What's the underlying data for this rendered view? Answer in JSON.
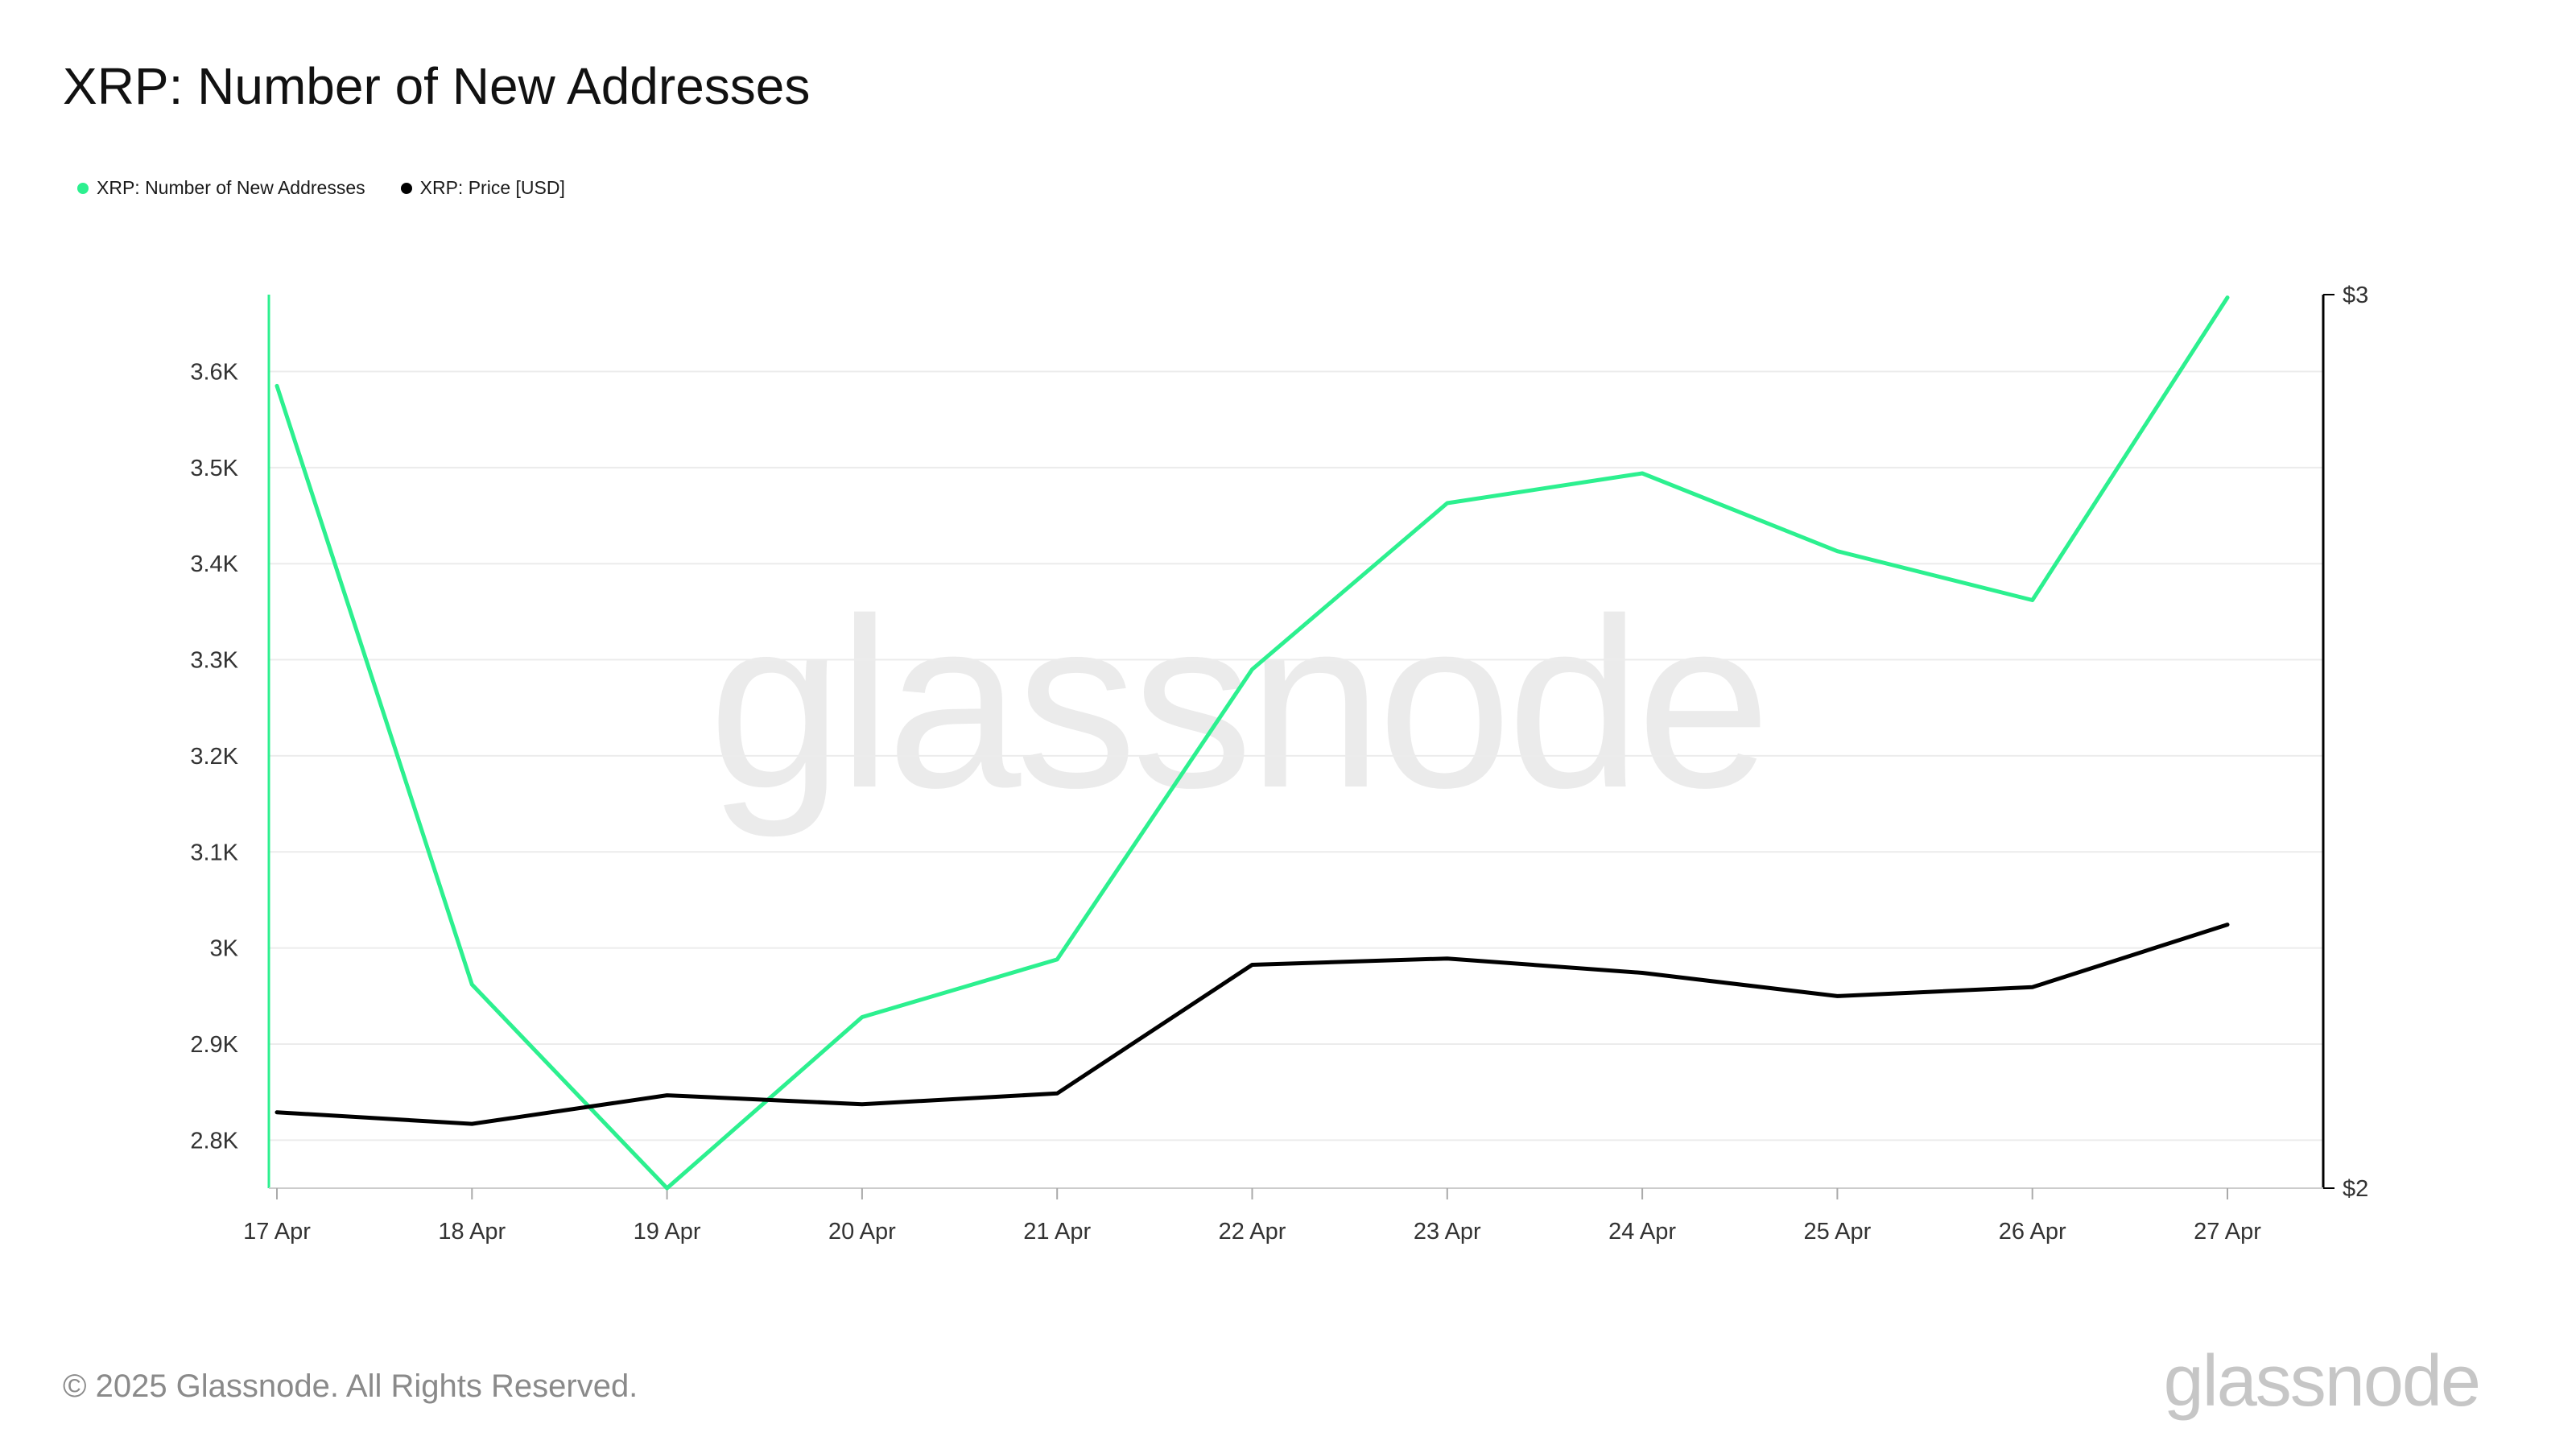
{
  "title": "XRP: Number of New Addresses",
  "legend": [
    {
      "label": "XRP: Number of New Addresses",
      "color": "#2cf08f"
    },
    {
      "label": "XRP: Price [USD]",
      "color": "#000000"
    }
  ],
  "watermark": "glassnode",
  "footer": {
    "copyright": "© 2025 Glassnode. All Rights Reserved.",
    "logo": "glassnode"
  },
  "chart_data": {
    "type": "line",
    "x": [
      "17 Apr",
      "18 Apr",
      "19 Apr",
      "20 Apr",
      "21 Apr",
      "22 Apr",
      "23 Apr",
      "24 Apr",
      "25 Apr",
      "26 Apr",
      "27 Apr"
    ],
    "series": [
      {
        "name": "XRP: Number of New Addresses",
        "axis": "left",
        "color": "#2cf08f",
        "values": [
          3585,
          2962,
          2750,
          2928,
          2988,
          3290,
          3463,
          3494,
          3413,
          3362,
          3677
        ]
      },
      {
        "name": "XRP: Price [USD]",
        "axis": "right",
        "color": "#000000",
        "values": [
          2.085,
          2.072,
          2.104,
          2.094,
          2.106,
          2.25,
          2.257,
          2.241,
          2.215,
          2.225,
          2.295
        ]
      }
    ],
    "y_left": {
      "ticks": [
        2800,
        2900,
        3000,
        3100,
        3200,
        3300,
        3400,
        3500,
        3600
      ],
      "tick_labels": [
        "2.8K",
        "2.9K",
        "3K",
        "3.1K",
        "3.2K",
        "3.3K",
        "3.4K",
        "3.5K",
        "3.6K"
      ],
      "range": [
        2750,
        3680
      ]
    },
    "y_right": {
      "ticks": [
        2,
        3
      ],
      "tick_labels": [
        "$2",
        "$3"
      ],
      "range": [
        2,
        3
      ]
    },
    "grid": true,
    "legend_position": "top-left"
  }
}
